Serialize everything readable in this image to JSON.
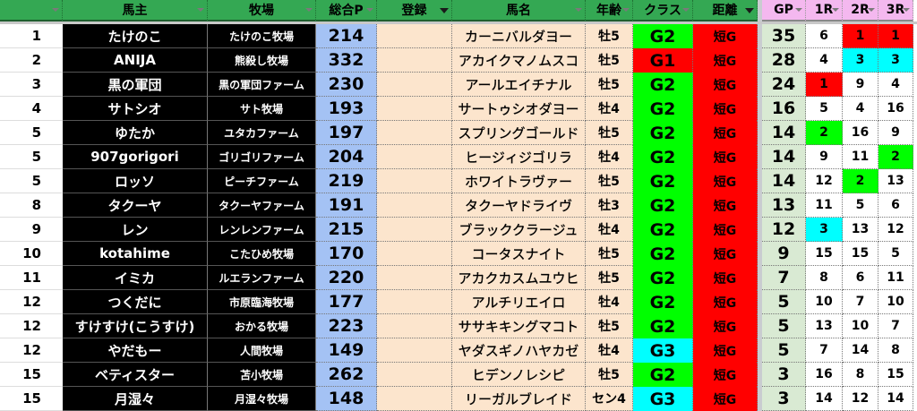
{
  "headers": {
    "rank": "",
    "owner": "馬主",
    "ranch": "牧場",
    "total_points": "総合P",
    "registration": "登録",
    "horse": "馬名",
    "age": "年齢",
    "class": "クラス",
    "distance": "距離",
    "gp": "GP",
    "r1": "1R",
    "r2": "2R",
    "r3": "3R"
  },
  "active_filters": [
    "登録",
    "距離"
  ],
  "colors": {
    "header_green": "#34a853",
    "header_pink": "#f4b8ef",
    "G1": "#ff0000",
    "G2": "#00ff00",
    "G3": "#00ffff",
    "round_1st": "#ff0000",
    "round_2nd": "#00ff00",
    "round_3rd": "#00ffff"
  },
  "rows": [
    {
      "rank": "1",
      "owner": "たけのこ",
      "ranch": "たけのこ牧場",
      "points": "214",
      "reg": "",
      "horse": "カーニバルダヨー",
      "age": "牡5",
      "class": "G2",
      "distance": "短G",
      "gp": "35",
      "r1": "6",
      "r2": "1",
      "r3": "1"
    },
    {
      "rank": "2",
      "owner": "ANIJA",
      "ranch": "熊殺し牧場",
      "points": "332",
      "reg": "",
      "horse": "アカイクマノムスコ",
      "age": "牡5",
      "class": "G1",
      "distance": "短G",
      "gp": "28",
      "r1": "4",
      "r2": "3",
      "r3": "3"
    },
    {
      "rank": "3",
      "owner": "黒の軍団",
      "ranch": "黒の軍団ファーム",
      "points": "230",
      "reg": "",
      "horse": "アールエイチナル",
      "age": "牡5",
      "class": "G2",
      "distance": "短G",
      "gp": "24",
      "r1": "1",
      "r2": "9",
      "r3": "4"
    },
    {
      "rank": "4",
      "owner": "サトシオ",
      "ranch": "サト牧場",
      "points": "193",
      "reg": "",
      "horse": "サートゥシオダヨー",
      "age": "牡4",
      "class": "G2",
      "distance": "短G",
      "gp": "16",
      "r1": "5",
      "r2": "4",
      "r3": "16"
    },
    {
      "rank": "5",
      "owner": "ゆたか",
      "ranch": "ユタカファーム",
      "points": "197",
      "reg": "",
      "horse": "スプリングゴールド",
      "age": "牡5",
      "class": "G2",
      "distance": "短G",
      "gp": "14",
      "r1": "2",
      "r2": "16",
      "r3": "9"
    },
    {
      "rank": "5",
      "owner": "907gorigori",
      "ranch": "ゴリゴリファーム",
      "points": "204",
      "reg": "",
      "horse": "ヒージィジゴリラ",
      "age": "牡4",
      "class": "G2",
      "distance": "短G",
      "gp": "14",
      "r1": "9",
      "r2": "11",
      "r3": "2"
    },
    {
      "rank": "5",
      "owner": "ロッソ",
      "ranch": "ピーチファーム",
      "points": "219",
      "reg": "",
      "horse": "ホワイトラヴァー",
      "age": "牡5",
      "class": "G2",
      "distance": "短G",
      "gp": "14",
      "r1": "12",
      "r2": "2",
      "r3": "13"
    },
    {
      "rank": "8",
      "owner": "タクーヤ",
      "ranch": "タクーヤファーム",
      "points": "191",
      "reg": "",
      "horse": "タクーヤドライヴ",
      "age": "牡3",
      "class": "G2",
      "distance": "短G",
      "gp": "13",
      "r1": "11",
      "r2": "5",
      "r3": "6"
    },
    {
      "rank": "9",
      "owner": "レン",
      "ranch": "レンレンファーム",
      "points": "215",
      "reg": "",
      "horse": "ブラッククラージュ",
      "age": "牡4",
      "class": "G2",
      "distance": "短G",
      "gp": "12",
      "r1": "3",
      "r2": "13",
      "r3": "12"
    },
    {
      "rank": "10",
      "owner": "kotahime",
      "ranch": "こたひめ牧場",
      "points": "170",
      "reg": "",
      "horse": "コータスナイト",
      "age": "牡5",
      "class": "G2",
      "distance": "短G",
      "gp": "9",
      "r1": "15",
      "r2": "15",
      "r3": "5"
    },
    {
      "rank": "11",
      "owner": "イミカ",
      "ranch": "ルエランファーム",
      "points": "220",
      "reg": "",
      "horse": "アカクカスムユウヒ",
      "age": "牡5",
      "class": "G2",
      "distance": "短G",
      "gp": "7",
      "r1": "8",
      "r2": "6",
      "r3": "11"
    },
    {
      "rank": "12",
      "owner": "つくだに",
      "ranch": "市原臨海牧場",
      "points": "177",
      "reg": "",
      "horse": "アルチリエイロ",
      "age": "牡4",
      "class": "G2",
      "distance": "短G",
      "gp": "5",
      "r1": "10",
      "r2": "7",
      "r3": "10"
    },
    {
      "rank": "12",
      "owner": "すけすけ(こうすけ)",
      "ranch": "おかる牧場",
      "points": "223",
      "reg": "",
      "horse": "ササキキングマコト",
      "age": "牡5",
      "class": "G2",
      "distance": "短G",
      "gp": "5",
      "r1": "13",
      "r2": "10",
      "r3": "7"
    },
    {
      "rank": "12",
      "owner": "やだもー",
      "ranch": "人間牧場",
      "points": "149",
      "reg": "",
      "horse": "ヤダスギノハヤカゼ",
      "age": "牡4",
      "class": "G3",
      "distance": "短G",
      "gp": "5",
      "r1": "7",
      "r2": "14",
      "r3": "8"
    },
    {
      "rank": "15",
      "owner": "ベティスター",
      "ranch": "苫小牧場",
      "points": "262",
      "reg": "",
      "horse": "ヒデンノレシピ",
      "age": "牡5",
      "class": "G2",
      "distance": "短G",
      "gp": "3",
      "r1": "16",
      "r2": "8",
      "r3": "15"
    },
    {
      "rank": "15",
      "owner": "月湿々",
      "ranch": "月湿々牧場",
      "points": "148",
      "reg": "",
      "horse": "リーガルブレイド",
      "age": "セン4",
      "class": "G3",
      "distance": "短G",
      "gp": "3",
      "r1": "14",
      "r2": "12",
      "r3": "14"
    }
  ]
}
